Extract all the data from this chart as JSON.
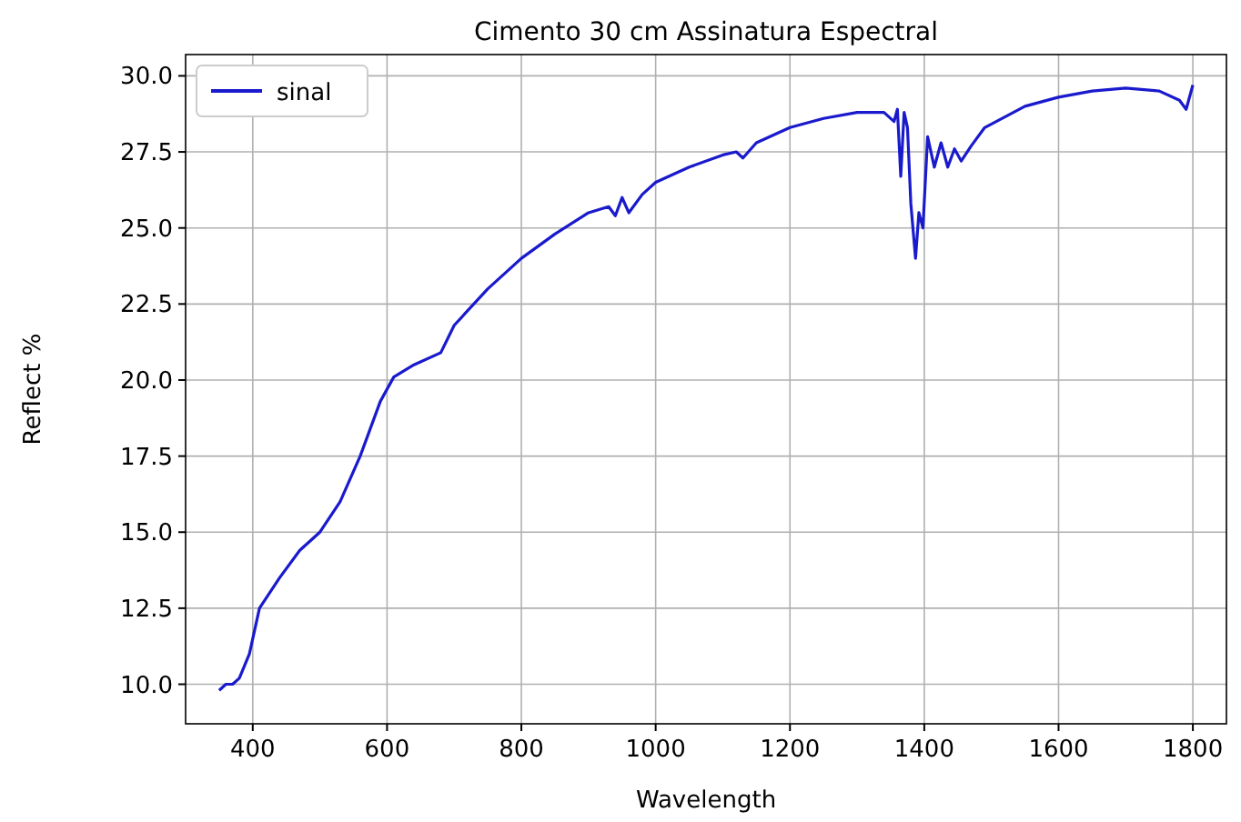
{
  "chart_data": {
    "type": "line",
    "title": "Cimento 30 cm Assinatura Espectral",
    "xlabel": "Wavelength",
    "ylabel": "Reflect %",
    "x": [
      350,
      360,
      370,
      380,
      395,
      410,
      440,
      470,
      500,
      530,
      560,
      590,
      610,
      640,
      680,
      700,
      750,
      800,
      850,
      900,
      930,
      940,
      950,
      960,
      980,
      1000,
      1050,
      1100,
      1120,
      1130,
      1150,
      1200,
      1250,
      1300,
      1340,
      1355,
      1360,
      1365,
      1370,
      1375,
      1380,
      1387,
      1392,
      1398,
      1405,
      1415,
      1425,
      1435,
      1445,
      1455,
      1470,
      1490,
      1550,
      1600,
      1650,
      1700,
      1750,
      1780,
      1790,
      1800
    ],
    "series": [
      {
        "name": "sinal",
        "color": "#1a1acd",
        "values": [
          9.8,
          10.0,
          10.0,
          10.2,
          11.0,
          12.5,
          13.5,
          14.4,
          15.0,
          16.0,
          17.5,
          19.3,
          20.1,
          20.5,
          20.9,
          21.8,
          23.0,
          24.0,
          24.8,
          25.5,
          25.7,
          25.4,
          26.0,
          25.5,
          26.1,
          26.5,
          27.0,
          27.4,
          27.5,
          27.3,
          27.8,
          28.3,
          28.6,
          28.8,
          28.8,
          28.5,
          28.9,
          26.7,
          28.8,
          28.3,
          25.8,
          24.0,
          25.5,
          25.0,
          28.0,
          27.0,
          27.8,
          27.0,
          27.6,
          27.2,
          27.7,
          28.3,
          29.0,
          29.3,
          29.5,
          29.6,
          29.5,
          29.2,
          28.9,
          29.7
        ]
      }
    ],
    "xlim": [
      300,
      1850
    ],
    "ylim": [
      8.7,
      30.7
    ],
    "xticks": [
      400,
      600,
      800,
      1000,
      1200,
      1400,
      1600,
      1800
    ],
    "yticks": [
      {
        "value": 10,
        "label": "10.0"
      },
      {
        "value": 12.5,
        "label": "12.5"
      },
      {
        "value": 15,
        "label": "15.0"
      },
      {
        "value": 17.5,
        "label": "17.5"
      },
      {
        "value": 20,
        "label": "20.0"
      },
      {
        "value": 22.5,
        "label": "22.5"
      },
      {
        "value": 25,
        "label": "25.0"
      },
      {
        "value": 27.5,
        "label": "27.5"
      },
      {
        "value": 30,
        "label": "30.0"
      }
    ],
    "grid": true,
    "legend": "top left"
  }
}
